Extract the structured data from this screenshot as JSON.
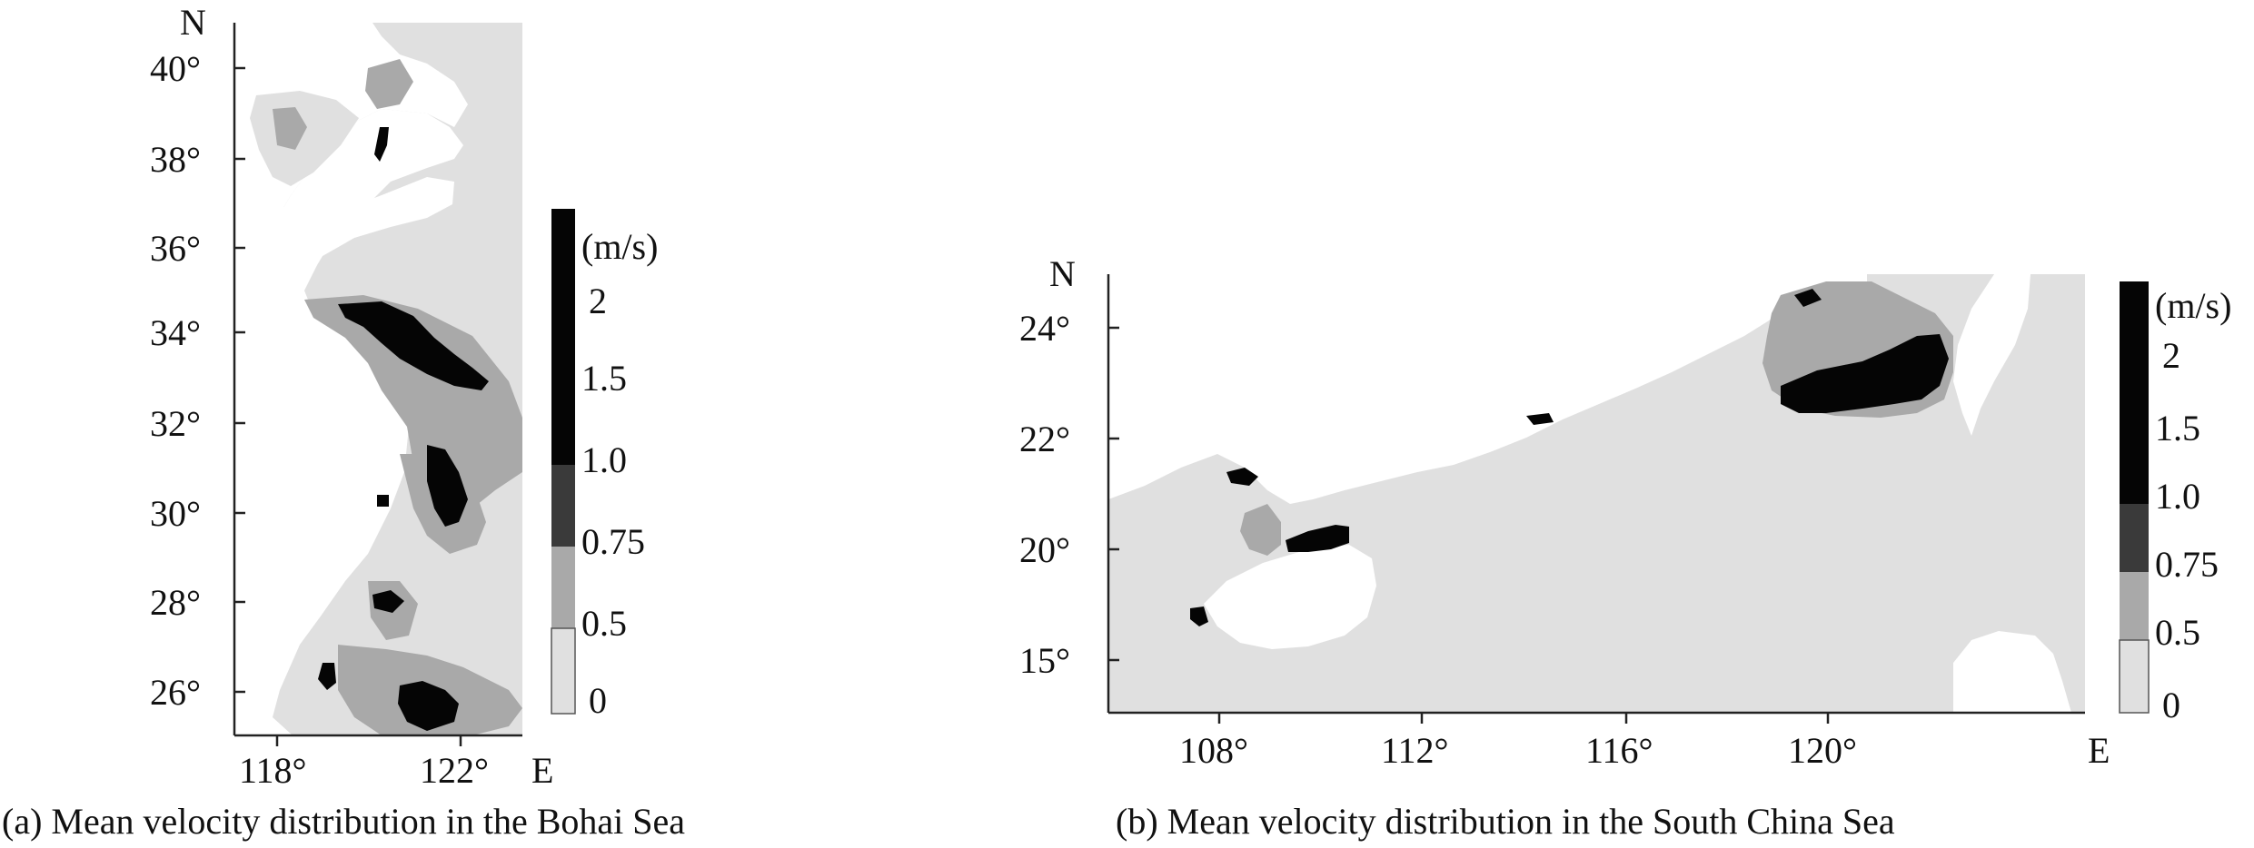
{
  "colors": {
    "land": "#ffffff",
    "v_0_05": "#e0e0e0",
    "v_05_075": "#a9a9a9",
    "v_075_10": "#3a3a3a",
    "v_10_2": "#050505",
    "axis": "#222222"
  },
  "panel_a": {
    "caption": "(a) Mean velocity distribution in the Bohai Sea",
    "north_label": "N",
    "east_label": "E",
    "lat_ticks": [
      "40°",
      "38°",
      "36°",
      "34°",
      "32°",
      "30°",
      "28°",
      "26°"
    ],
    "lon_ticks": [
      "118°",
      "122°"
    ],
    "legend": {
      "unit": "(m/s)",
      "labels": [
        "2",
        "1.5",
        "1.0",
        "0.75",
        "0.5",
        "0"
      ]
    }
  },
  "panel_b": {
    "caption": "(b) Mean velocity distribution in the South China Sea",
    "north_label": "N",
    "east_label": "E",
    "lat_ticks": [
      "24°",
      "22°",
      "20°",
      "15°"
    ],
    "lon_ticks": [
      "108°",
      "112°",
      "116°",
      "120°"
    ],
    "legend": {
      "unit": "(m/s)",
      "labels": [
        "2",
        "1.5",
        "1.0",
        "0.75",
        "0.5",
        "0"
      ]
    }
  }
}
